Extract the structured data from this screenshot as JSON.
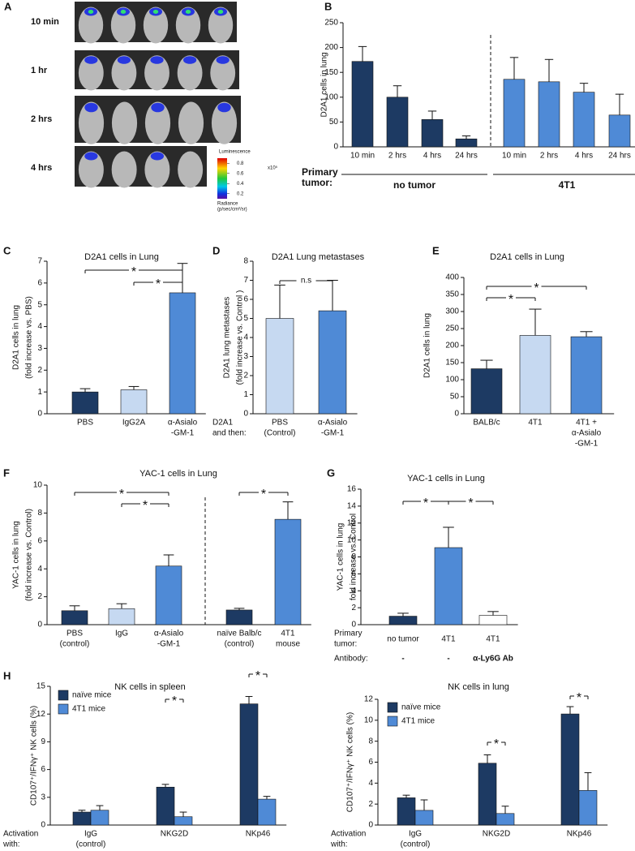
{
  "panel_a": {
    "panel": "A",
    "time_labels": [
      "10 min",
      "1 hr",
      "2 hrs",
      "4 hrs"
    ],
    "colorbar": {
      "title": "Luminescence",
      "lim": [
        0.1,
        0.9
      ],
      "ticks": [
        0.8,
        0.6,
        0.4,
        0.2
      ],
      "unit": "x10⁵",
      "label": [
        "Radiance",
        "(p/sec/cm²/sr)"
      ]
    }
  },
  "chart_data": [
    {
      "panel": "B",
      "type": "bar",
      "ylabel": [
        "D2A1 cells in lung"
      ],
      "categories": [
        [
          "10 min"
        ],
        [
          "2 hrs"
        ],
        [
          "4 hrs"
        ],
        [
          "24 hrs"
        ],
        [
          "10 min"
        ],
        [
          "2 hrs"
        ],
        [
          "4 hrs"
        ],
        [
          "24 hrs"
        ]
      ],
      "row_title": [
        "Primary",
        "tumor:"
      ],
      "series": [
        {
          "name": "no tumor",
          "color": "#1d3a63",
          "values": [
            172,
            100,
            55,
            16,
            null,
            null,
            null,
            null
          ],
          "errors": [
            30,
            23,
            17,
            6,
            null,
            null,
            null,
            null
          ]
        },
        {
          "name": "4T1",
          "color": "#4f8ad6",
          "values": [
            null,
            null,
            null,
            null,
            136,
            131,
            110,
            64
          ],
          "errors": [
            null,
            null,
            null,
            null,
            44,
            45,
            18,
            42
          ]
        }
      ],
      "ylim": [
        0,
        250
      ],
      "yticks": [
        0,
        50,
        100,
        150,
        200,
        250
      ],
      "divider": true
    },
    {
      "panel": "C",
      "type": "bar",
      "title": "D2A1 cells in Lung",
      "ylabel": [
        "D2A1 cells in lung",
        "(fold increase vs. PBS)"
      ],
      "categories": [
        [
          "PBS"
        ],
        [
          "IgG2A"
        ],
        [
          "α-Asialo",
          "-GM-1"
        ]
      ],
      "series": [
        {
          "colors": [
            "#1d3a63",
            "#c6d9f1",
            "#4f8ad6"
          ],
          "values": [
            1.0,
            1.1,
            5.55
          ],
          "errors": [
            0.15,
            0.15,
            1.35
          ]
        }
      ],
      "ylim": [
        0,
        7
      ],
      "yticks": [
        0,
        1,
        2,
        3,
        4,
        5,
        6,
        7
      ],
      "brackets": [
        {
          "from": [
            0,
            0
          ],
          "to": [
            2,
            0
          ],
          "label": "*"
        },
        {
          "from": [
            1,
            0
          ],
          "to": [
            2,
            0
          ],
          "label": "*"
        }
      ]
    },
    {
      "panel": "D",
      "type": "bar",
      "title": "D2A1 Lung metastases",
      "ylabel": [
        "D2A1 lung metastases",
        "(fold increase vs. Control )"
      ],
      "categories": [
        [
          "PBS",
          "(Control)"
        ],
        [
          "α-Asialo",
          "-GM-1"
        ]
      ],
      "row_title": [
        "D2A1",
        "and then:"
      ],
      "series": [
        {
          "colors": [
            "#c6d9f1",
            "#4f8ad6"
          ],
          "values": [
            5.0,
            5.4
          ],
          "errors": [
            1.75,
            1.6
          ]
        }
      ],
      "ylim": [
        0,
        8
      ],
      "yticks": [
        0,
        1,
        2,
        3,
        4,
        5,
        6,
        7,
        8
      ],
      "brackets": [
        {
          "from": [
            0,
            0
          ],
          "to": [
            1,
            0
          ],
          "label": "n.s"
        }
      ]
    },
    {
      "panel": "E",
      "type": "bar",
      "title": "D2A1 cells in Lung",
      "ylabel": [
        "D2A1 cells in lung"
      ],
      "categories": [
        [
          "BALB/c"
        ],
        [
          "4T1"
        ],
        [
          "4T1 +",
          "α-Asialo",
          "-GM-1"
        ]
      ],
      "series": [
        {
          "colors": [
            "#1d3a63",
            "#c6d9f1",
            "#4f8ad6"
          ],
          "values": [
            132,
            230,
            226
          ],
          "errors": [
            25,
            77,
            15
          ]
        }
      ],
      "ylim": [
        0,
        400
      ],
      "yticks": [
        0,
        50,
        100,
        150,
        200,
        250,
        300,
        350,
        400
      ],
      "brackets": [
        {
          "from": [
            0,
            0
          ],
          "to": [
            2,
            0
          ],
          "label": "*"
        },
        {
          "from": [
            0,
            0
          ],
          "to": [
            1,
            0
          ],
          "label": "*"
        }
      ]
    },
    {
      "panel": "F",
      "type": "bar",
      "title": "YAC-1 cells in Lung",
      "ylabel": [
        "YAC-1 cells in lung",
        "(fold increase vs. Control)"
      ],
      "categories": [
        [
          "PBS",
          "(control)"
        ],
        [
          "IgG"
        ],
        [
          "α-Asialo",
          "-GM-1"
        ],
        [
          "naïve Balb/c",
          "(control)"
        ],
        [
          "4T1",
          "mouse"
        ]
      ],
      "series": [
        {
          "colors": [
            "#1d3a63",
            "#c6d9f1",
            "#4f8ad6",
            "#1d3a63",
            "#4f8ad6"
          ],
          "values": [
            1.0,
            1.15,
            4.2,
            1.05,
            7.55
          ],
          "errors": [
            0.35,
            0.35,
            0.8,
            0.12,
            1.25
          ]
        }
      ],
      "ylim": [
        0,
        10
      ],
      "yticks": [
        0,
        2,
        4,
        6,
        8,
        10
      ],
      "divider": true,
      "brackets": [
        {
          "from": [
            0,
            0
          ],
          "to": [
            2,
            0
          ],
          "label": "*"
        },
        {
          "from": [
            1,
            0
          ],
          "to": [
            2,
            0
          ],
          "label": "*"
        },
        {
          "from": [
            3,
            0
          ],
          "to": [
            4,
            0
          ],
          "label": "*"
        }
      ]
    },
    {
      "panel": "G",
      "type": "bar",
      "title": "YAC-1 cells in Lung",
      "ylabel": [
        "YAC-1 cells  in lung",
        "fold increase vs. Control"
      ],
      "categories": [
        [
          "no tumor"
        ],
        [
          "4T1"
        ],
        [
          "4T1"
        ]
      ],
      "row_title": [
        "Primary",
        "tumor:"
      ],
      "extra_rows": [
        {
          "title": [
            "Antibody:"
          ],
          "labels": [
            "-",
            "-",
            "α-Ly6G Ab"
          ]
        }
      ],
      "series": [
        {
          "colors": [
            "#1d3a63",
            "#4f8ad6",
            "#ffffff"
          ],
          "values": [
            1.0,
            9.1,
            1.1
          ],
          "errors": [
            0.35,
            2.4,
            0.45
          ]
        }
      ],
      "ylim": [
        0,
        16
      ],
      "yticks": [
        0,
        2,
        4,
        6,
        8,
        10,
        12,
        14,
        16
      ],
      "brackets": [
        {
          "from": [
            0,
            0
          ],
          "to": [
            1,
            0
          ],
          "label": "*"
        },
        {
          "from": [
            1,
            0
          ],
          "to": [
            2,
            0
          ],
          "label": "*"
        }
      ]
    },
    {
      "panel": "H",
      "type": "bar",
      "title": "NK cells in spleen",
      "ylabel": [
        "CD107⁺/IFNγ⁺ NK cells (%)"
      ],
      "legend": true,
      "categories": [
        [
          "IgG",
          "(control)"
        ],
        [
          "NKG2D"
        ],
        [
          "NKp46"
        ]
      ],
      "row_title": [
        "Activation",
        "with:"
      ],
      "series": [
        {
          "name": "naïve mice",
          "color": "#1d3a63",
          "values": [
            1.4,
            4.1,
            13.1
          ],
          "errors": [
            0.2,
            0.3,
            0.8
          ]
        },
        {
          "name": "4T1 mice",
          "color": "#4f8ad6",
          "values": [
            1.6,
            0.9,
            2.8
          ],
          "errors": [
            0.5,
            0.5,
            0.3
          ]
        }
      ],
      "ylim": [
        0,
        15
      ],
      "yticks": [
        0,
        3,
        6,
        9,
        12,
        15
      ],
      "brackets": [
        {
          "from": [
            1,
            0
          ],
          "to": [
            1,
            1
          ],
          "label": "*"
        },
        {
          "from": [
            2,
            0
          ],
          "to": [
            2,
            1
          ],
          "label": "*"
        }
      ]
    },
    {
      "type": "bar",
      "title": "NK cells in lung",
      "ylabel": [
        "CD107⁺/IFNγ⁺ NK cells (%)"
      ],
      "legend": true,
      "categories": [
        [
          "IgG",
          "(control)"
        ],
        [
          "NKG2D"
        ],
        [
          "NKp46"
        ]
      ],
      "row_title": [
        "Activation",
        "with:"
      ],
      "series": [
        {
          "name": "naïve mice",
          "color": "#1d3a63",
          "values": [
            2.6,
            5.9,
            10.6
          ],
          "errors": [
            0.25,
            0.8,
            0.7
          ]
        },
        {
          "name": "4T1 mice",
          "color": "#4f8ad6",
          "values": [
            1.4,
            1.1,
            3.3
          ],
          "errors": [
            1.0,
            0.7,
            1.7
          ]
        }
      ],
      "ylim": [
        0,
        12
      ],
      "yticks": [
        0,
        2,
        4,
        6,
        8,
        10,
        12
      ],
      "brackets": [
        {
          "from": [
            1,
            0
          ],
          "to": [
            1,
            1
          ],
          "label": "*"
        },
        {
          "from": [
            2,
            0
          ],
          "to": [
            2,
            1
          ],
          "label": "*"
        }
      ]
    }
  ]
}
